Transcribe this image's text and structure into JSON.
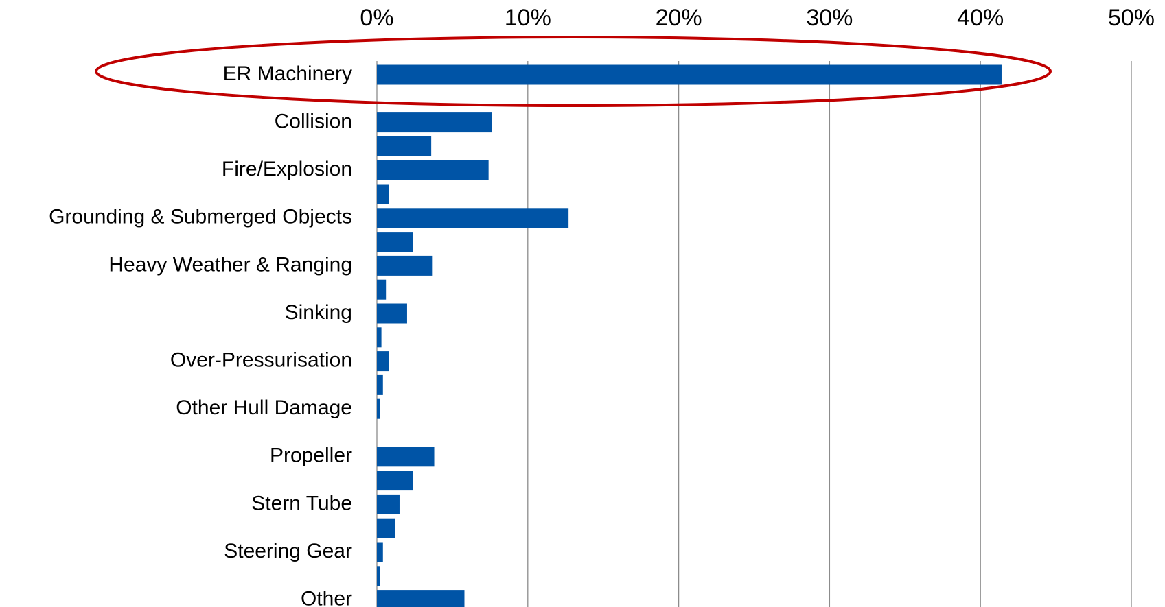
{
  "chart_data": {
    "type": "bar",
    "orientation": "horizontal",
    "categories": [
      "ER Machinery",
      null,
      "Collision",
      null,
      "Fire/Explosion",
      null,
      "Grounding & Submerged Objects",
      null,
      "Heavy Weather & Ranging",
      null,
      "Sinking",
      null,
      "Over-Pressurisation",
      null,
      "Other Hull Damage",
      null,
      "Propeller",
      null,
      "Stern Tube",
      null,
      "Steering Gear",
      null,
      "Other"
    ],
    "values": [
      41.4,
      0,
      7.6,
      3.6,
      7.4,
      0.8,
      12.7,
      2.4,
      3.7,
      0.6,
      2.0,
      0.3,
      0.8,
      0.4,
      0.2,
      0,
      3.8,
      2.4,
      1.5,
      1.2,
      0.4,
      0.2,
      5.8
    ],
    "color": "#0054a6",
    "xlim": [
      0,
      50
    ],
    "xticks": [
      {
        "value": 0,
        "label": "0%"
      },
      {
        "value": 10,
        "label": "10%"
      },
      {
        "value": 20,
        "label": "20%"
      },
      {
        "value": 30,
        "label": "30%"
      },
      {
        "value": 40,
        "label": "40%"
      },
      {
        "value": 50,
        "label": "50%"
      }
    ],
    "grid": true
  }
}
